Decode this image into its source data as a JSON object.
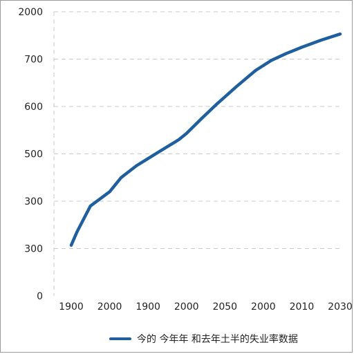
{
  "chart_data": {
    "type": "line",
    "title": "",
    "xlabel": "",
    "ylabel": "",
    "y_tick_labels": [
      "0",
      "300",
      "300",
      "500",
      "600",
      "700",
      "2000"
    ],
    "x_tick_labels": [
      "1900",
      "2000",
      "1900",
      "2000",
      "2050",
      "2000",
      "2010",
      "2030"
    ],
    "ylim": [
      0,
      6
    ],
    "xlim": [
      0,
      7
    ],
    "grid": "horizontal-dashed",
    "legend_position": "bottom",
    "series": [
      {
        "name": "今的 今年年  和去年土半的失业率数据",
        "color": "#1f5f9e",
        "x": [
          0,
          0.15,
          0.5,
          1.0,
          1.3,
          1.7,
          2.0,
          2.4,
          2.8,
          3.0,
          3.4,
          3.8,
          4.3,
          4.8,
          5.2,
          5.6,
          6.0,
          6.5,
          7.0
        ],
        "y": [
          1.07,
          1.35,
          1.9,
          2.2,
          2.5,
          2.75,
          2.9,
          3.1,
          3.3,
          3.43,
          3.75,
          4.06,
          4.42,
          4.76,
          4.97,
          5.12,
          5.25,
          5.4,
          5.53
        ]
      }
    ]
  }
}
